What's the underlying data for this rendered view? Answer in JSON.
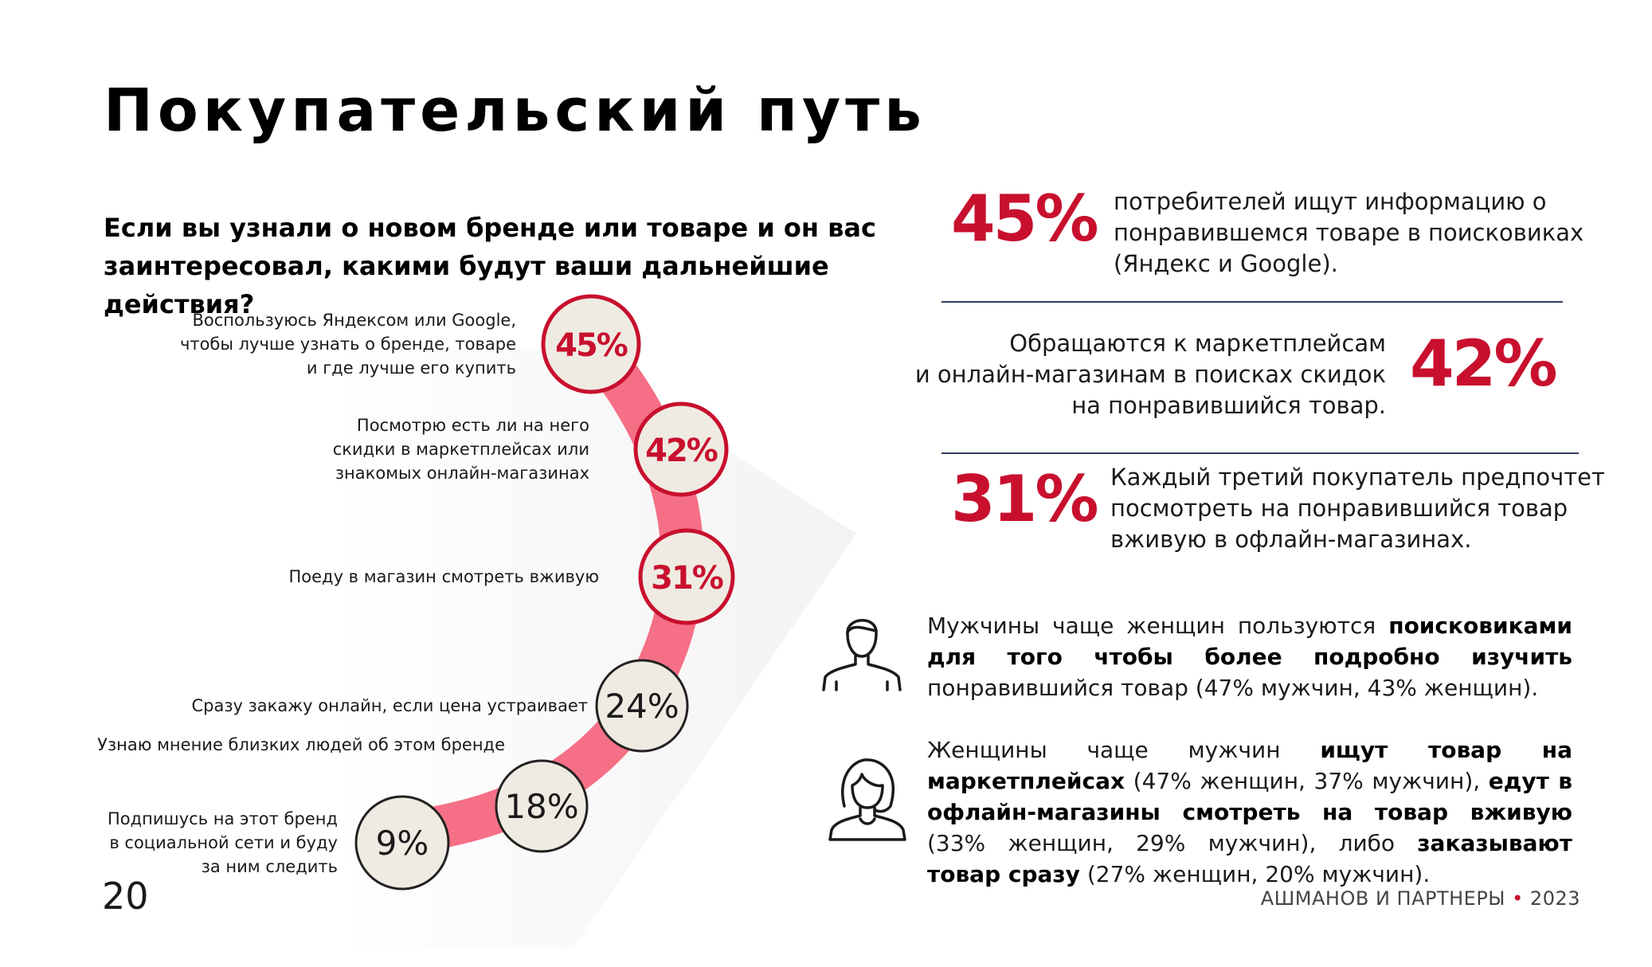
{
  "header": {
    "title": "Покупательский путь"
  },
  "question": {
    "line1": "Если вы узнали о новом бренде или товаре и он вас",
    "line2": "заинтересовал, какими будут ваши дальнейшие действия?"
  },
  "chart_data": {
    "type": "bar",
    "categories": [
      "Воспользуюсь Яндексом или Google, чтобы лучше узнать о бренде, товаре и где лучше его купить",
      "Посмотрю есть ли на него скидки в маркетплейсах или знакомых онлайн-магазинах",
      "Поеду в магазин смотреть вживую",
      "Сразу закажу онлайн, если цена устраивает",
      "Узнаю мнение близких людей об этом бренде",
      "Подпишусь на этот бренд в социальной сети и буду за ним следить"
    ],
    "values": [
      45,
      42,
      31,
      24,
      18,
      9
    ],
    "unit": "%",
    "highlighted_top": 3,
    "colors": {
      "highlight": "#c8102e",
      "arc": "#f56f86",
      "bubble_fill": "#efebe2",
      "bubble_border": "#222222"
    }
  },
  "options": [
    {
      "lines": [
        "Воспользуюсь Яндексом или Google,",
        "чтобы лучше узнать о бренде, товаре",
        "и где лучше его купить"
      ],
      "value": "45%"
    },
    {
      "lines": [
        "Посмотрю есть ли на него",
        "скидки в маркетплейсах или",
        "знакомых онлайн-магазинах"
      ],
      "value": "42%"
    },
    {
      "lines": [
        "Поеду в магазин смотреть вживую"
      ],
      "value": "31%"
    },
    {
      "lines": [
        "Сразу закажу онлайн, если цена устраивает"
      ],
      "value": "24%"
    },
    {
      "lines": [
        "Узнаю мнение близких людей об этом бренде"
      ],
      "value": "18%"
    },
    {
      "lines": [
        "Подпишусь на этот бренд",
        "в социальной сети и буду",
        "за ним следить"
      ],
      "value": "9%"
    }
  ],
  "stats": [
    {
      "value": "45%",
      "lines": [
        "потребителей ищут информацию о",
        "понравившемся товаре в поисковиках",
        "(Яндекс и Google)."
      ]
    },
    {
      "value": "42%",
      "lines": [
        "Обращаются к маркетплейсам",
        "и онлайн-магазинам в поисках скидок",
        "на понравившийся товар."
      ]
    },
    {
      "value": "31%",
      "lines": [
        "Каждый третий покупатель предпочтет",
        "посмотреть на понравившийся товар",
        "вживую в офлайн-магазинах."
      ]
    }
  ],
  "men": {
    "icon": "man-icon",
    "parts": [
      {
        "text": "Мужчины чаще женщин пользуются ",
        "bold": false
      },
      {
        "text": "поисковиками для того чтобы более подробно изучить",
        "bold": true
      },
      {
        "text": " понравившийся товар (47% мужчин, 43% женщин).",
        "bold": false
      }
    ]
  },
  "women": {
    "icon": "woman-icon",
    "parts": [
      {
        "text": "Женщины чаще мужчин ",
        "bold": false
      },
      {
        "text": "ищут товар на маркетплейсах",
        "bold": true
      },
      {
        "text": " (47% женщин, 37% мужчин), ",
        "bold": false
      },
      {
        "text": "едут в офлайн-магазины смотреть на товар вживую",
        "bold": true
      },
      {
        "text": " (33% женщин, 29% мужчин), либо ",
        "bold": false
      },
      {
        "text": "заказывают товар сразу",
        "bold": true
      },
      {
        "text": " (27% женщин, 20% мужчин).",
        "bold": false
      }
    ]
  },
  "footer": {
    "page_number": "20",
    "brand": "АШМАНОВ И ПАРТНЕРЫ",
    "separator": "•",
    "year": "2023"
  }
}
